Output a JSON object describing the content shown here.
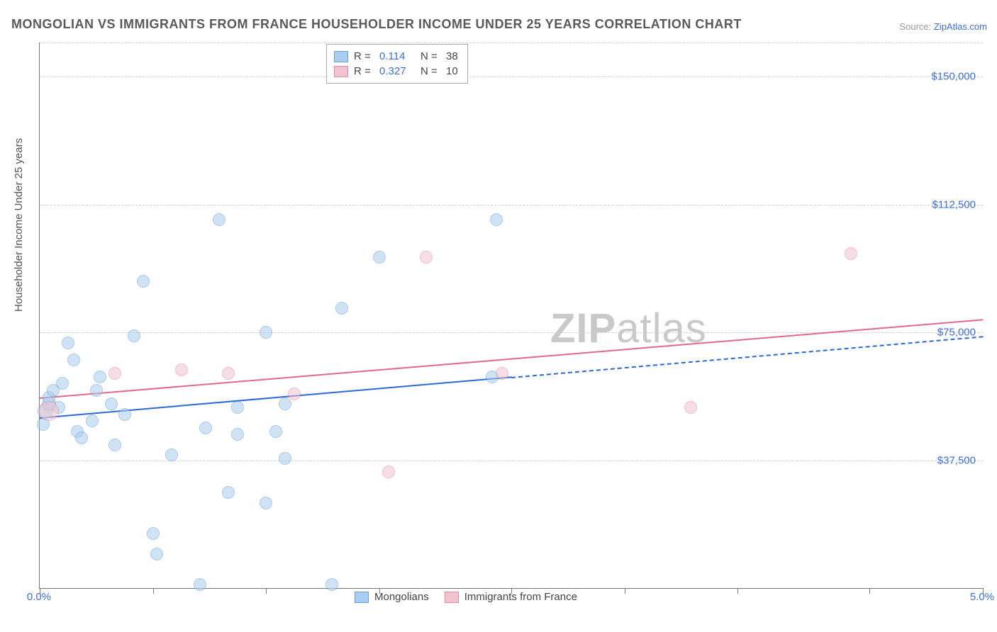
{
  "title": "MONGOLIAN VS IMMIGRANTS FROM FRANCE HOUSEHOLDER INCOME UNDER 25 YEARS CORRELATION CHART",
  "source_prefix": "Source: ",
  "source_name": "ZipAtlas.com",
  "watermark_a": "ZIP",
  "watermark_b": "atlas",
  "chart": {
    "type": "scatter",
    "ylabel": "Householder Income Under 25 years",
    "xlim": [
      0.0,
      5.0
    ],
    "ylim": [
      0,
      160000
    ],
    "y_ticks": [
      37500,
      75000,
      112500,
      150000
    ],
    "y_tick_labels": [
      "$37,500",
      "$75,000",
      "$112,500",
      "$150,000"
    ],
    "x_ticks": [
      0.0,
      2.5,
      5.0
    ],
    "x_tick_labels": [
      "0.0%",
      "",
      "5.0%"
    ],
    "background_color": "#ffffff",
    "grid_color": "#d9d9d9",
    "axis_color": "#777777",
    "point_radius": 9,
    "point_opacity": 0.55,
    "series": [
      {
        "name": "Mongolians",
        "color_fill": "#a9cdee",
        "color_stroke": "#6a9fd8",
        "r_value": "0.114",
        "n_value": "38",
        "trend": {
          "x1": 0.0,
          "y1": 50000,
          "x2": 5.0,
          "y2": 74000,
          "color": "#2b69d4",
          "dash_from_x": 2.5
        },
        "points": [
          {
            "x": 0.02,
            "y": 48000,
            "r": 9
          },
          {
            "x": 0.03,
            "y": 52000,
            "r": 11
          },
          {
            "x": 0.05,
            "y": 54000,
            "r": 10
          },
          {
            "x": 0.05,
            "y": 56000,
            "r": 9
          },
          {
            "x": 0.07,
            "y": 58000,
            "r": 9
          },
          {
            "x": 0.1,
            "y": 53000,
            "r": 9
          },
          {
            "x": 0.12,
            "y": 60000,
            "r": 9
          },
          {
            "x": 0.15,
            "y": 72000,
            "r": 9
          },
          {
            "x": 0.18,
            "y": 67000,
            "r": 9
          },
          {
            "x": 0.2,
            "y": 46000,
            "r": 9
          },
          {
            "x": 0.22,
            "y": 44000,
            "r": 9
          },
          {
            "x": 0.28,
            "y": 49000,
            "r": 9
          },
          {
            "x": 0.3,
            "y": 58000,
            "r": 9
          },
          {
            "x": 0.32,
            "y": 62000,
            "r": 9
          },
          {
            "x": 0.38,
            "y": 54000,
            "r": 9
          },
          {
            "x": 0.4,
            "y": 42000,
            "r": 9
          },
          {
            "x": 0.45,
            "y": 51000,
            "r": 9
          },
          {
            "x": 0.5,
            "y": 74000,
            "r": 9
          },
          {
            "x": 0.55,
            "y": 90000,
            "r": 9
          },
          {
            "x": 0.6,
            "y": 16000,
            "r": 9
          },
          {
            "x": 0.62,
            "y": 10000,
            "r": 9
          },
          {
            "x": 0.7,
            "y": 39000,
            "r": 9
          },
          {
            "x": 0.85,
            "y": 1000,
            "r": 9
          },
          {
            "x": 0.88,
            "y": 47000,
            "r": 9
          },
          {
            "x": 0.95,
            "y": 108000,
            "r": 9
          },
          {
            "x": 1.0,
            "y": 28000,
            "r": 9
          },
          {
            "x": 1.05,
            "y": 53000,
            "r": 9
          },
          {
            "x": 1.05,
            "y": 45000,
            "r": 9
          },
          {
            "x": 1.2,
            "y": 25000,
            "r": 9
          },
          {
            "x": 1.2,
            "y": 75000,
            "r": 9
          },
          {
            "x": 1.25,
            "y": 46000,
            "r": 9
          },
          {
            "x": 1.3,
            "y": 38000,
            "r": 9
          },
          {
            "x": 1.3,
            "y": 54000,
            "r": 9
          },
          {
            "x": 1.55,
            "y": 1000,
            "r": 9
          },
          {
            "x": 1.6,
            "y": 82000,
            "r": 9
          },
          {
            "x": 1.8,
            "y": 97000,
            "r": 9
          },
          {
            "x": 2.4,
            "y": 62000,
            "r": 9
          },
          {
            "x": 2.42,
            "y": 108000,
            "r": 9
          }
        ]
      },
      {
        "name": "Immigrants from France",
        "color_fill": "#f2c3cf",
        "color_stroke": "#e68aa4",
        "r_value": "0.327",
        "n_value": "10",
        "trend": {
          "x1": 0.0,
          "y1": 56000,
          "x2": 5.0,
          "y2": 79000,
          "color": "#e06a8c",
          "dash_from_x": 5.0
        },
        "points": [
          {
            "x": 0.05,
            "y": 52000,
            "r": 14
          },
          {
            "x": 0.4,
            "y": 63000,
            "r": 9
          },
          {
            "x": 0.75,
            "y": 64000,
            "r": 9
          },
          {
            "x": 1.0,
            "y": 63000,
            "r": 9
          },
          {
            "x": 1.35,
            "y": 57000,
            "r": 9
          },
          {
            "x": 1.85,
            "y": 34000,
            "r": 9
          },
          {
            "x": 2.05,
            "y": 97000,
            "r": 9
          },
          {
            "x": 2.45,
            "y": 63000,
            "r": 9
          },
          {
            "x": 3.45,
            "y": 53000,
            "r": 9
          },
          {
            "x": 4.3,
            "y": 98000,
            "r": 9
          }
        ]
      }
    ],
    "legend_bottom": [
      "Mongolians",
      "Immigrants from France"
    ],
    "legend_top_labels": {
      "r": "R =",
      "n": "N ="
    }
  }
}
